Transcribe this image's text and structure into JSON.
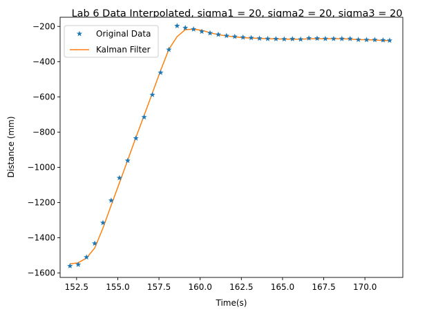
{
  "chart_data": {
    "type": "line",
    "title": "Lab 6 Data Interpolated, sigma1 = 20, sigma2 = 20, sigma3 = 20",
    "xlabel": "Time(s)",
    "ylabel": "Distance (mm)",
    "xlim": [
      151.5,
      172.3
    ],
    "ylim": [
      -1625,
      -148
    ],
    "xticks": [
      152.5,
      155.0,
      157.5,
      160.0,
      162.5,
      165.0,
      167.5,
      170.0
    ],
    "xtick_labels": [
      "152.5",
      "155.0",
      "157.5",
      "160.0",
      "162.5",
      "165.0",
      "167.5",
      "170.0"
    ],
    "yticks": [
      -1600,
      -1400,
      -1200,
      -1000,
      -800,
      -600,
      -400,
      -200
    ],
    "ytick_labels": [
      "−1600",
      "−1400",
      "−1200",
      "−1000",
      "−800",
      "−600",
      "−400",
      "−200"
    ],
    "grid": false,
    "legend": "top-left",
    "series": [
      {
        "name": "Original Data",
        "kind": "scatter",
        "marker": "star",
        "color": "#1f77b4",
        "x": [
          152.1,
          152.6,
          153.1,
          153.6,
          154.1,
          154.6,
          155.1,
          155.6,
          156.1,
          156.6,
          157.1,
          157.6,
          158.1,
          158.6,
          159.1,
          159.6,
          160.1,
          160.6,
          161.1,
          161.6,
          162.1,
          162.6,
          163.1,
          163.6,
          164.1,
          164.6,
          165.1,
          165.6,
          166.1,
          166.6,
          167.1,
          167.6,
          168.1,
          168.6,
          169.1,
          169.6,
          170.1,
          170.6,
          171.1,
          171.5
        ],
        "y": [
          -1560,
          -1552,
          -1510,
          -1432,
          -1315,
          -1188,
          -1060,
          -962,
          -835,
          -715,
          -588,
          -462,
          -332,
          -197,
          -208,
          -216,
          -229,
          -238,
          -246,
          -253,
          -258,
          -262,
          -265,
          -268,
          -270,
          -271,
          -272,
          -271,
          -273,
          -267,
          -268,
          -270,
          -270,
          -270,
          -270,
          -275,
          -276,
          -276,
          -278,
          -280
        ]
      },
      {
        "name": "Kalman Filter",
        "kind": "line",
        "color": "#ff7f0e",
        "x": [
          152.1,
          152.6,
          153.1,
          153.6,
          154.1,
          154.6,
          155.1,
          155.6,
          156.1,
          156.6,
          157.1,
          157.6,
          158.1,
          158.6,
          159.1,
          159.6,
          160.1,
          160.6,
          161.1,
          161.6,
          162.1,
          162.6,
          163.1,
          163.6,
          164.1,
          164.6,
          165.1,
          165.6,
          166.1,
          166.6,
          167.1,
          167.6,
          168.1,
          168.6,
          169.1,
          169.6,
          170.1,
          170.6,
          171.1,
          171.5
        ],
        "y": [
          -1548,
          -1542,
          -1515,
          -1458,
          -1345,
          -1215,
          -1088,
          -960,
          -830,
          -705,
          -578,
          -450,
          -330,
          -258,
          -218,
          -216,
          -222,
          -236,
          -247,
          -254,
          -259,
          -264,
          -266,
          -268,
          -270,
          -271,
          -272,
          -273,
          -273,
          -270,
          -270,
          -270,
          -270,
          -270,
          -272,
          -275,
          -276,
          -277,
          -280,
          -280
        ]
      }
    ]
  }
}
